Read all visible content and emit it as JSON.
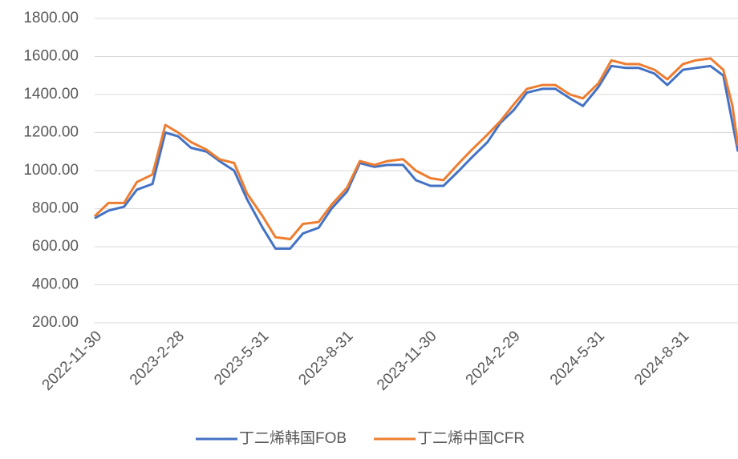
{
  "chart_data": {
    "type": "line",
    "x": [
      "2022-11-30",
      "2022-12-15",
      "2023-01-01",
      "2023-01-15",
      "2023-02-01",
      "2023-02-15",
      "2023-03-01",
      "2023-03-15",
      "2023-04-01",
      "2023-04-15",
      "2023-05-01",
      "2023-05-15",
      "2023-06-01",
      "2023-06-15",
      "2023-07-01",
      "2023-07-15",
      "2023-08-01",
      "2023-08-15",
      "2023-09-01",
      "2023-09-15",
      "2023-10-01",
      "2023-10-15",
      "2023-11-01",
      "2023-11-15",
      "2023-12-01",
      "2023-12-15",
      "2024-01-01",
      "2024-01-15",
      "2024-02-01",
      "2024-02-15",
      "2024-03-01",
      "2024-03-15",
      "2024-04-01",
      "2024-04-15",
      "2024-05-01",
      "2024-05-15",
      "2024-06-01",
      "2024-06-15",
      "2024-07-01",
      "2024-07-15",
      "2024-08-01",
      "2024-08-15",
      "2024-09-01",
      "2024-09-15",
      "2024-10-01",
      "2024-10-15",
      "2024-10-25",
      "2024-10-31"
    ],
    "series": [
      {
        "name": "丁二烯韩国FOB",
        "color": "#4472c4",
        "values": [
          750,
          790,
          810,
          900,
          930,
          1200,
          1180,
          1120,
          1100,
          1050,
          1000,
          850,
          700,
          590,
          590,
          670,
          700,
          800,
          890,
          1040,
          1020,
          1030,
          1030,
          950,
          920,
          920,
          1000,
          1070,
          1150,
          1250,
          1320,
          1410,
          1430,
          1430,
          1380,
          1340,
          1440,
          1550,
          1540,
          1540,
          1510,
          1450,
          1530,
          1540,
          1550,
          1500,
          1250,
          1100
        ]
      },
      {
        "name": "丁二烯中国CFR",
        "color": "#ed7d31",
        "values": [
          760,
          830,
          830,
          940,
          980,
          1240,
          1200,
          1150,
          1110,
          1060,
          1040,
          880,
          760,
          650,
          640,
          720,
          730,
          820,
          910,
          1050,
          1030,
          1050,
          1060,
          1000,
          960,
          950,
          1040,
          1110,
          1190,
          1260,
          1350,
          1430,
          1450,
          1450,
          1400,
          1380,
          1460,
          1580,
          1560,
          1560,
          1530,
          1480,
          1560,
          1580,
          1590,
          1530,
          1340,
          1130
        ]
      }
    ],
    "xlim": [
      "2022-11-30",
      "2024-10-31"
    ],
    "xticks": [
      "2022-11-30",
      "2023-2-28",
      "2023-5-31",
      "2023-8-31",
      "2023-11-30",
      "2024-2-29",
      "2024-5-31",
      "2024-8-31"
    ],
    "ylim": [
      200,
      1800
    ],
    "yticks": [
      {
        "value": 200,
        "label": "200.00"
      },
      {
        "value": 400,
        "label": "400.00"
      },
      {
        "value": 600,
        "label": "600.00"
      },
      {
        "value": 800,
        "label": "800.00"
      },
      {
        "value": 1000,
        "label": "1000.00"
      },
      {
        "value": 1200,
        "label": "1200.00"
      },
      {
        "value": 1400,
        "label": "1400.00"
      },
      {
        "value": 1600,
        "label": "1600.00"
      },
      {
        "value": 1800,
        "label": "1800.00"
      }
    ],
    "grid": true,
    "legend": "bottom"
  }
}
